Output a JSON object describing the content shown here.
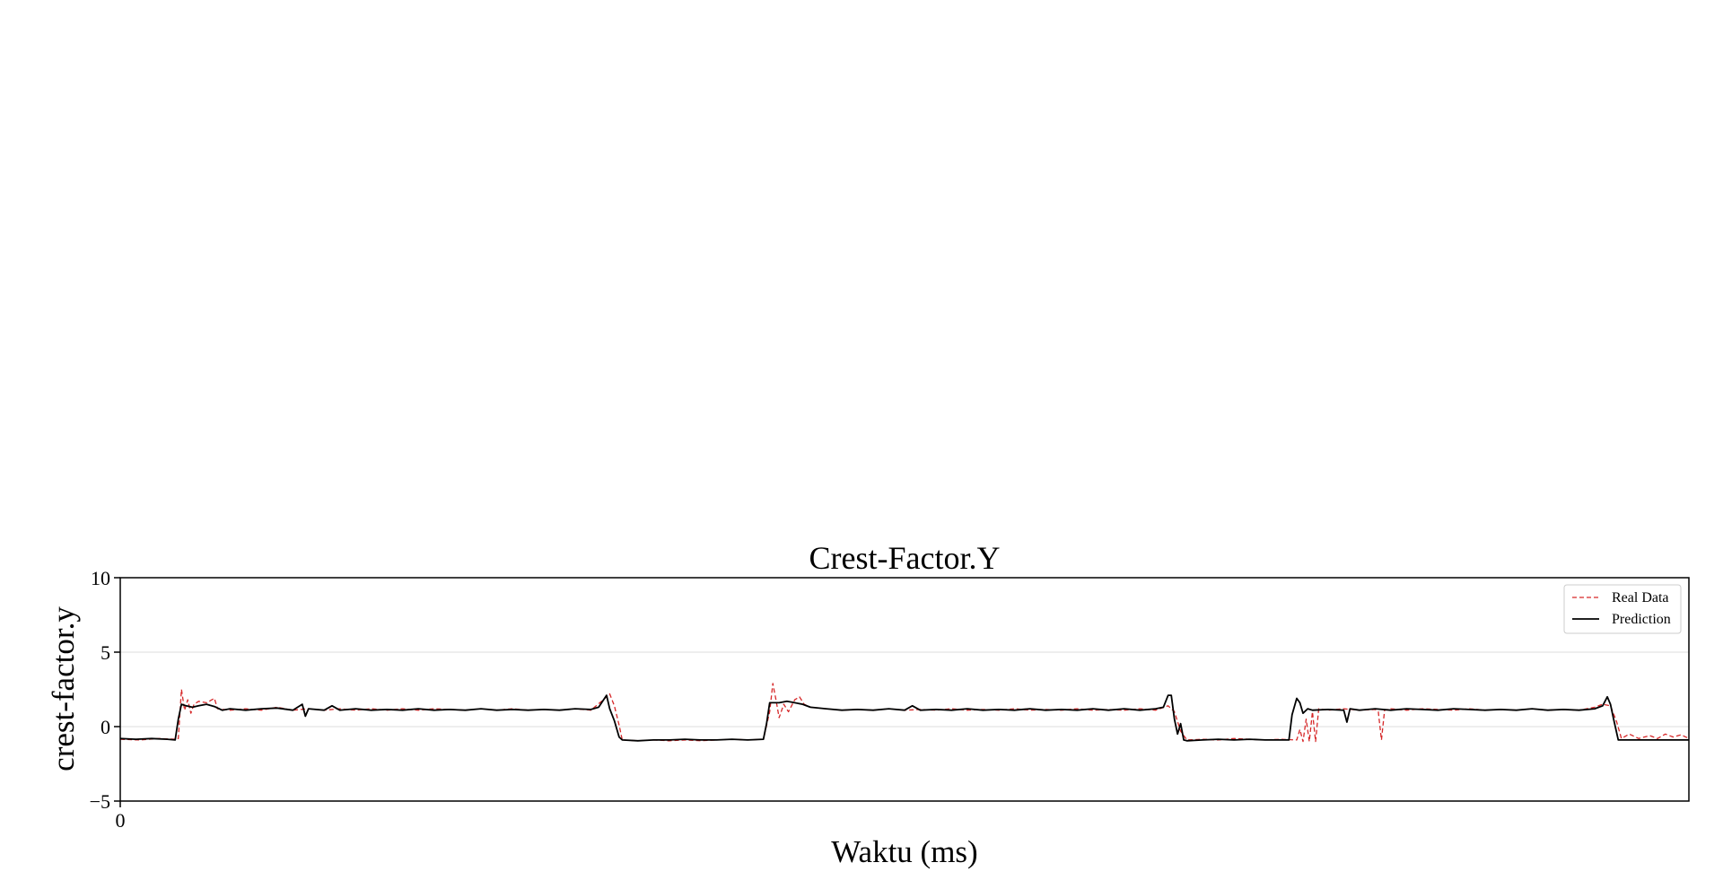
{
  "chart_data": {
    "type": "line",
    "title": "Crest-Factor.Y",
    "xlabel": "Waktu (ms)",
    "ylabel": "crest-factor.y",
    "xlim": [
      0,
      1000
    ],
    "ylim": [
      -5,
      10
    ],
    "yticks": [
      -5,
      0,
      5,
      10
    ],
    "xticks": [
      0
    ],
    "grid": "horizontal",
    "legend": "top-right",
    "series": [
      {
        "name": "Real Data",
        "color": "#d62728",
        "style": "dashed",
        "points": [
          [
            0,
            -0.85
          ],
          [
            12,
            -0.9
          ],
          [
            25,
            -0.8
          ],
          [
            35,
            -0.85
          ],
          [
            37,
            -0.8
          ],
          [
            39,
            2.5
          ],
          [
            41,
            1.1
          ],
          [
            43,
            1.8
          ],
          [
            45,
            0.9
          ],
          [
            47,
            1.5
          ],
          [
            50,
            1.7
          ],
          [
            55,
            1.6
          ],
          [
            60,
            1.9
          ],
          [
            62,
            1.2
          ],
          [
            70,
            1.1
          ],
          [
            80,
            1.2
          ],
          [
            90,
            1.1
          ],
          [
            100,
            1.3
          ],
          [
            110,
            1.1
          ],
          [
            120,
            1.2
          ],
          [
            130,
            1.1
          ],
          [
            140,
            1.2
          ],
          [
            150,
            1.1
          ],
          [
            160,
            1.2
          ],
          [
            170,
            1.1
          ],
          [
            180,
            1.2
          ],
          [
            190,
            1.1
          ],
          [
            200,
            1.2
          ],
          [
            210,
            1.15
          ],
          [
            220,
            1.1
          ],
          [
            230,
            1.2
          ],
          [
            240,
            1.1
          ],
          [
            250,
            1.2
          ],
          [
            260,
            1.1
          ],
          [
            270,
            1.15
          ],
          [
            280,
            1.1
          ],
          [
            290,
            1.2
          ],
          [
            300,
            1.1
          ],
          [
            308,
            1.8
          ],
          [
            312,
            2.2
          ],
          [
            315,
            1.4
          ],
          [
            318,
            0.1
          ],
          [
            320,
            -0.9
          ],
          [
            330,
            -0.95
          ],
          [
            340,
            -0.9
          ],
          [
            350,
            -0.95
          ],
          [
            360,
            -0.9
          ],
          [
            370,
            -0.95
          ],
          [
            380,
            -0.9
          ],
          [
            390,
            -0.85
          ],
          [
            400,
            -0.9
          ],
          [
            410,
            -0.85
          ],
          [
            414,
            1.0
          ],
          [
            416,
            2.9
          ],
          [
            418,
            1.8
          ],
          [
            420,
            0.6
          ],
          [
            423,
            1.5
          ],
          [
            426,
            1.0
          ],
          [
            430,
            1.8
          ],
          [
            433,
            2.0
          ],
          [
            436,
            1.5
          ],
          [
            440,
            1.3
          ],
          [
            450,
            1.2
          ],
          [
            460,
            1.1
          ],
          [
            470,
            1.15
          ],
          [
            480,
            1.1
          ],
          [
            490,
            1.2
          ],
          [
            500,
            1.1
          ],
          [
            510,
            1.15
          ],
          [
            520,
            1.1
          ],
          [
            530,
            1.2
          ],
          [
            540,
            1.1
          ],
          [
            550,
            1.15
          ],
          [
            560,
            1.1
          ],
          [
            570,
            1.2
          ],
          [
            580,
            1.1
          ],
          [
            590,
            1.15
          ],
          [
            600,
            1.1
          ],
          [
            610,
            1.2
          ],
          [
            620,
            1.1
          ],
          [
            630,
            1.15
          ],
          [
            640,
            1.1
          ],
          [
            650,
            1.2
          ],
          [
            660,
            1.1
          ],
          [
            668,
            1.4
          ],
          [
            672,
            1.0
          ],
          [
            676,
            -0.3
          ],
          [
            680,
            -0.9
          ],
          [
            690,
            -0.85
          ],
          [
            700,
            -0.9
          ],
          [
            710,
            -0.8
          ],
          [
            720,
            -0.85
          ],
          [
            730,
            -0.9
          ],
          [
            740,
            -0.85
          ],
          [
            750,
            -0.9
          ],
          [
            752,
            -0.2
          ],
          [
            754,
            -1.0
          ],
          [
            756,
            0.5
          ],
          [
            758,
            -1.0
          ],
          [
            760,
            1.0
          ],
          [
            762,
            -1.0
          ],
          [
            764,
            1.2
          ],
          [
            770,
            1.1
          ],
          [
            780,
            1.2
          ],
          [
            790,
            1.1
          ],
          [
            800,
            1.15
          ],
          [
            802,
            1.0
          ],
          [
            804,
            -0.9
          ],
          [
            806,
            1.1
          ],
          [
            810,
            1.2
          ],
          [
            820,
            1.1
          ],
          [
            830,
            1.2
          ],
          [
            840,
            1.15
          ],
          [
            850,
            1.1
          ],
          [
            860,
            1.2
          ],
          [
            870,
            1.1
          ],
          [
            880,
            1.15
          ],
          [
            890,
            1.1
          ],
          [
            900,
            1.2
          ],
          [
            910,
            1.1
          ],
          [
            920,
            1.15
          ],
          [
            930,
            1.1
          ],
          [
            940,
            1.3
          ],
          [
            945,
            1.5
          ],
          [
            950,
            1.4
          ],
          [
            954,
            0.3
          ],
          [
            957,
            -0.8
          ],
          [
            962,
            -0.5
          ],
          [
            968,
            -0.8
          ],
          [
            975,
            -0.6
          ],
          [
            980,
            -0.8
          ],
          [
            985,
            -0.5
          ],
          [
            990,
            -0.7
          ],
          [
            995,
            -0.55
          ],
          [
            1000,
            -0.8
          ]
        ]
      },
      {
        "name": "Prediction",
        "color": "#000000",
        "style": "solid",
        "points": [
          [
            0,
            -0.8
          ],
          [
            10,
            -0.85
          ],
          [
            20,
            -0.8
          ],
          [
            30,
            -0.85
          ],
          [
            35,
            -0.9
          ],
          [
            37,
            0.5
          ],
          [
            39,
            1.5
          ],
          [
            42,
            1.4
          ],
          [
            46,
            1.3
          ],
          [
            50,
            1.4
          ],
          [
            55,
            1.5
          ],
          [
            60,
            1.35
          ],
          [
            65,
            1.1
          ],
          [
            70,
            1.2
          ],
          [
            80,
            1.1
          ],
          [
            90,
            1.2
          ],
          [
            100,
            1.25
          ],
          [
            110,
            1.1
          ],
          [
            116,
            1.5
          ],
          [
            118,
            0.7
          ],
          [
            120,
            1.2
          ],
          [
            130,
            1.1
          ],
          [
            135,
            1.4
          ],
          [
            140,
            1.1
          ],
          [
            150,
            1.2
          ],
          [
            160,
            1.1
          ],
          [
            170,
            1.15
          ],
          [
            180,
            1.1
          ],
          [
            190,
            1.2
          ],
          [
            200,
            1.1
          ],
          [
            210,
            1.15
          ],
          [
            220,
            1.1
          ],
          [
            230,
            1.2
          ],
          [
            240,
            1.1
          ],
          [
            250,
            1.15
          ],
          [
            260,
            1.1
          ],
          [
            270,
            1.15
          ],
          [
            280,
            1.1
          ],
          [
            290,
            1.2
          ],
          [
            300,
            1.15
          ],
          [
            305,
            1.3
          ],
          [
            310,
            2.1
          ],
          [
            312,
            1.2
          ],
          [
            315,
            0.4
          ],
          [
            318,
            -0.7
          ],
          [
            320,
            -0.9
          ],
          [
            330,
            -0.95
          ],
          [
            340,
            -0.9
          ],
          [
            350,
            -0.9
          ],
          [
            360,
            -0.85
          ],
          [
            370,
            -0.9
          ],
          [
            380,
            -0.9
          ],
          [
            390,
            -0.85
          ],
          [
            400,
            -0.9
          ],
          [
            410,
            -0.85
          ],
          [
            412,
            0.2
          ],
          [
            414,
            1.6
          ],
          [
            420,
            1.6
          ],
          [
            425,
            1.7
          ],
          [
            430,
            1.6
          ],
          [
            435,
            1.5
          ],
          [
            440,
            1.3
          ],
          [
            450,
            1.2
          ],
          [
            460,
            1.1
          ],
          [
            470,
            1.15
          ],
          [
            480,
            1.1
          ],
          [
            490,
            1.2
          ],
          [
            500,
            1.1
          ],
          [
            505,
            1.4
          ],
          [
            510,
            1.1
          ],
          [
            520,
            1.15
          ],
          [
            530,
            1.1
          ],
          [
            540,
            1.2
          ],
          [
            550,
            1.1
          ],
          [
            560,
            1.15
          ],
          [
            570,
            1.1
          ],
          [
            580,
            1.2
          ],
          [
            590,
            1.1
          ],
          [
            600,
            1.15
          ],
          [
            610,
            1.1
          ],
          [
            620,
            1.2
          ],
          [
            630,
            1.1
          ],
          [
            640,
            1.2
          ],
          [
            650,
            1.1
          ],
          [
            660,
            1.2
          ],
          [
            665,
            1.3
          ],
          [
            668,
            2.1
          ],
          [
            670,
            2.1
          ],
          [
            672,
            0.5
          ],
          [
            674,
            -0.5
          ],
          [
            676,
            0.2
          ],
          [
            678,
            -0.9
          ],
          [
            680,
            -0.95
          ],
          [
            690,
            -0.9
          ],
          [
            700,
            -0.85
          ],
          [
            710,
            -0.9
          ],
          [
            720,
            -0.85
          ],
          [
            730,
            -0.9
          ],
          [
            740,
            -0.9
          ],
          [
            745,
            -0.9
          ],
          [
            747,
            0.8
          ],
          [
            750,
            1.9
          ],
          [
            752,
            1.6
          ],
          [
            754,
            0.9
          ],
          [
            757,
            1.2
          ],
          [
            760,
            1.1
          ],
          [
            770,
            1.15
          ],
          [
            780,
            1.1
          ],
          [
            782,
            0.3
          ],
          [
            784,
            1.2
          ],
          [
            790,
            1.1
          ],
          [
            800,
            1.2
          ],
          [
            810,
            1.1
          ],
          [
            820,
            1.2
          ],
          [
            830,
            1.15
          ],
          [
            840,
            1.1
          ],
          [
            850,
            1.2
          ],
          [
            860,
            1.15
          ],
          [
            870,
            1.1
          ],
          [
            880,
            1.15
          ],
          [
            890,
            1.1
          ],
          [
            900,
            1.2
          ],
          [
            910,
            1.1
          ],
          [
            920,
            1.15
          ],
          [
            930,
            1.1
          ],
          [
            940,
            1.2
          ],
          [
            945,
            1.4
          ],
          [
            948,
            2.0
          ],
          [
            950,
            1.5
          ],
          [
            952,
            0.5
          ],
          [
            955,
            -0.9
          ],
          [
            960,
            -0.9
          ],
          [
            970,
            -0.9
          ],
          [
            980,
            -0.9
          ],
          [
            990,
            -0.9
          ],
          [
            1000,
            -0.9
          ]
        ]
      }
    ]
  }
}
